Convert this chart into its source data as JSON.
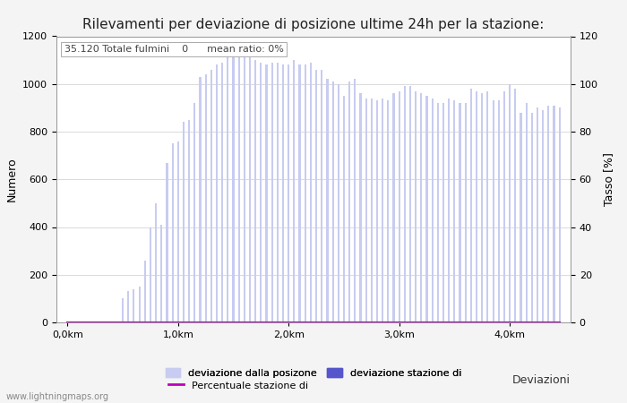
{
  "title": "Rilevamenti per deviazione di posizione ultime 24h per la stazione:",
  "subtitle": "35.120 Totale fulmini    0      mean ratio: 0%",
  "xlabel": "Deviazioni",
  "ylabel_left": "Numero",
  "ylabel_right": "Tasso [%]",
  "watermark": "www.lightningmaps.org",
  "xtick_labels": [
    "0,0km",
    "1,0km",
    "2,0km",
    "3,0km",
    "4,0km"
  ],
  "ylim_left": [
    0,
    1200
  ],
  "ylim_right": [
    0,
    120
  ],
  "yticks_left": [
    0,
    200,
    400,
    600,
    800,
    1000,
    1200
  ],
  "yticks_right": [
    0,
    20,
    40,
    60,
    80,
    100,
    120
  ],
  "bar_color_light": "#c8ccf0",
  "bar_color_dark": "#5555cc",
  "line_color": "#bb00bb",
  "bar_width": 0.35,
  "bar_values": [
    0,
    0,
    0,
    0,
    0,
    0,
    0,
    0,
    0,
    5,
    100,
    130,
    140,
    150,
    260,
    400,
    500,
    410,
    670,
    750,
    760,
    840,
    850,
    920,
    1030,
    1040,
    1060,
    1080,
    1090,
    1160,
    1130,
    1110,
    1130,
    1110,
    1100,
    1090,
    1080,
    1090,
    1090,
    1080,
    1080,
    1100,
    1080,
    1080,
    1090,
    1060,
    1060,
    1020,
    1010,
    1000,
    950,
    1010,
    1020,
    960,
    940,
    940,
    930,
    940,
    930,
    960,
    970,
    990,
    990,
    970,
    960,
    950,
    940,
    920,
    920,
    940,
    930,
    920,
    920,
    980,
    970,
    960,
    970,
    930,
    930,
    970,
    1000,
    980,
    880,
    920,
    880,
    900,
    890,
    910,
    910,
    900
  ],
  "dark_bar_values": [
    0,
    0,
    0,
    0,
    0,
    0,
    0,
    0,
    0,
    0,
    0,
    0,
    0,
    0,
    0,
    0,
    0,
    0,
    0,
    0,
    0,
    0,
    0,
    0,
    0,
    0,
    0,
    0,
    0,
    0,
    0,
    0,
    0,
    0,
    0,
    0,
    0,
    0,
    0,
    0,
    0,
    0,
    0,
    0,
    0,
    0,
    0,
    0,
    0,
    0,
    0,
    0,
    0,
    0,
    0,
    0,
    0,
    0,
    0,
    0,
    0,
    0,
    0,
    0,
    0,
    0,
    0,
    0,
    0,
    0,
    0,
    0,
    0,
    0,
    0,
    0,
    0,
    0,
    0,
    0,
    0,
    0,
    0,
    0,
    0,
    0,
    0,
    0,
    0,
    0
  ],
  "n_bars": 90,
  "km_per_bar": 0.05,
  "legend_labels": [
    "deviazione dalla posizone",
    "deviazione stazione di",
    "Percentuale stazione di"
  ],
  "title_fontsize": 11,
  "label_fontsize": 9,
  "tick_fontsize": 8,
  "legend_fontsize": 8,
  "bg_color": "#f4f4f4",
  "plot_bg_color": "#ffffff"
}
